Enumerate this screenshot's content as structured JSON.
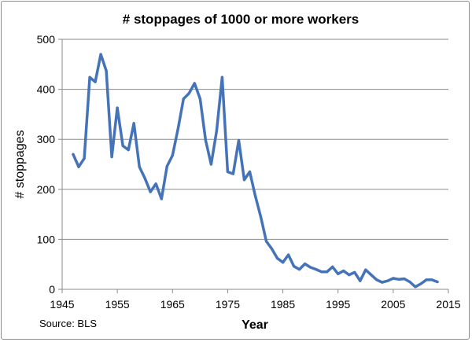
{
  "chart_data": {
    "type": "line",
    "title": "# stoppages of 1000 or more workers",
    "xlabel": "Year",
    "ylabel": "# stoppages",
    "source": "Source: BLS",
    "xlim": [
      1945,
      2015
    ],
    "ylim": [
      0,
      500
    ],
    "xticks": [
      1945,
      1955,
      1965,
      1975,
      1985,
      1995,
      2005,
      2015
    ],
    "yticks": [
      0,
      100,
      200,
      300,
      400,
      500
    ],
    "grid": true,
    "legend": "none",
    "line_color": "#4573b8",
    "series": [
      {
        "x": [
          1947,
          1948,
          1949,
          1950,
          1951,
          1952,
          1953,
          1954,
          1955,
          1956,
          1957,
          1958,
          1959,
          1960,
          1961,
          1962,
          1963,
          1964,
          1965,
          1966,
          1967,
          1968,
          1969,
          1970,
          1971,
          1972,
          1973,
          1974,
          1975,
          1976,
          1977,
          1978,
          1979,
          1980,
          1981,
          1982,
          1983,
          1984,
          1985,
          1986,
          1987,
          1988,
          1989,
          1990,
          1991,
          1992,
          1993,
          1994,
          1995,
          1996,
          1997,
          1998,
          1999,
          2000,
          2001,
          2002,
          2003,
          2004,
          2005,
          2006,
          2007,
          2008,
          2009,
          2010,
          2011,
          2012,
          2013
        ],
        "values": [
          270,
          245,
          262,
          424,
          415,
          470,
          437,
          265,
          363,
          287,
          279,
          332,
          245,
          222,
          195,
          211,
          181,
          246,
          268,
          321,
          381,
          392,
          412,
          381,
          298,
          250,
          317,
          424,
          235,
          231,
          298,
          219,
          235,
          187,
          145,
          96,
          81,
          62,
          54,
          69,
          46,
          40,
          51,
          44,
          40,
          35,
          35,
          45,
          31,
          37,
          29,
          34,
          17,
          39,
          29,
          19,
          14,
          17,
          22,
          20,
          21,
          15,
          5,
          11,
          19,
          19,
          15
        ]
      }
    ]
  }
}
